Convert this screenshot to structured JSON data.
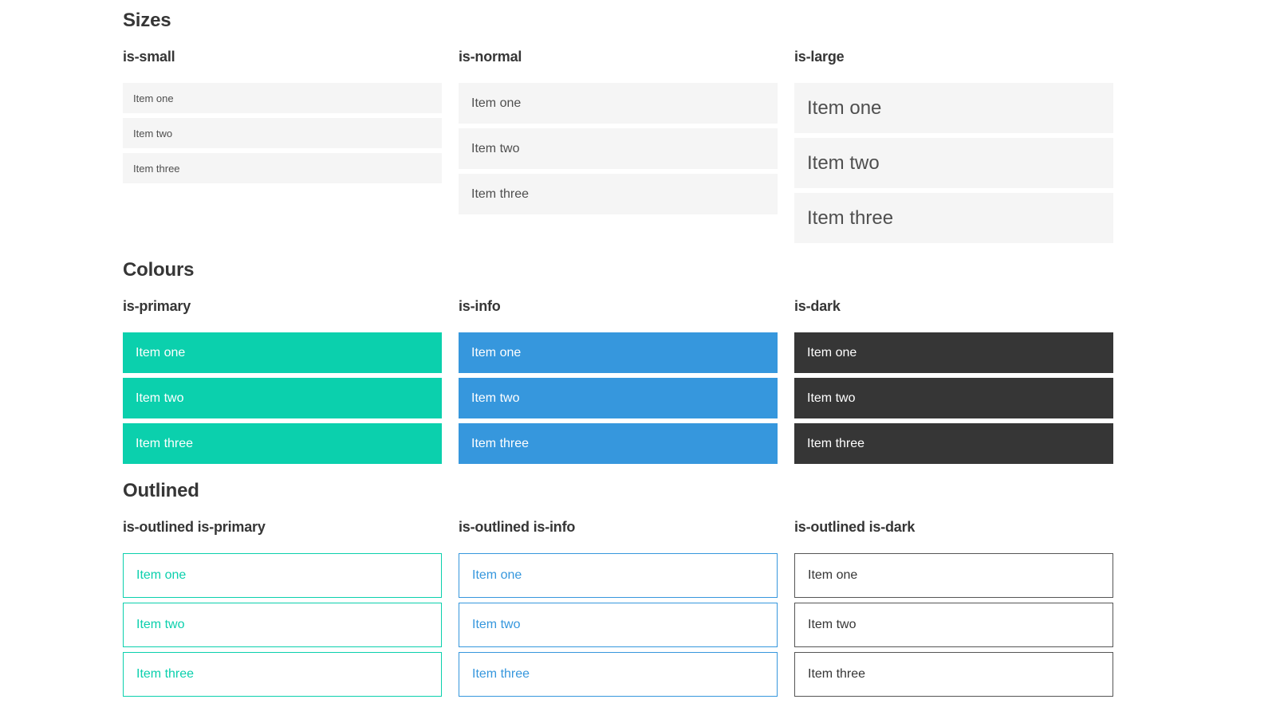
{
  "colors": {
    "primary": "#0bd0ad",
    "info": "#3697dd",
    "dark": "#363636",
    "outlined_dark_border": "#555555",
    "item_bg": "#f5f5f5",
    "item_text": "#4f4f4f",
    "heading": "#363636"
  },
  "sections": [
    {
      "title": "Sizes",
      "groups": [
        {
          "label": "is-small",
          "variant": "size-small",
          "items": [
            "Item one",
            "Item two",
            "Item three"
          ]
        },
        {
          "label": "is-normal",
          "variant": "size-normal",
          "items": [
            "Item one",
            "Item two",
            "Item three"
          ]
        },
        {
          "label": "is-large",
          "variant": "size-large",
          "items": [
            "Item one",
            "Item two",
            "Item three"
          ]
        }
      ]
    },
    {
      "title": "Colours",
      "groups": [
        {
          "label": "is-primary",
          "variant": "color-primary",
          "items": [
            "Item one",
            "Item two",
            "Item three"
          ]
        },
        {
          "label": "is-info",
          "variant": "color-info",
          "items": [
            "Item one",
            "Item two",
            "Item three"
          ]
        },
        {
          "label": "is-dark",
          "variant": "color-dark",
          "items": [
            "Item one",
            "Item two",
            "Item three"
          ]
        }
      ]
    },
    {
      "title": "Outlined",
      "groups": [
        {
          "label": "is-outlined is-primary",
          "variant": "outlined-primary",
          "items": [
            "Item one",
            "Item two",
            "Item three"
          ]
        },
        {
          "label": "is-outlined is-info",
          "variant": "outlined-info",
          "items": [
            "Item one",
            "Item two",
            "Item three"
          ]
        },
        {
          "label": "is-outlined is-dark",
          "variant": "outlined-dark",
          "items": [
            "Item one",
            "Item two",
            "Item three"
          ]
        }
      ]
    }
  ]
}
